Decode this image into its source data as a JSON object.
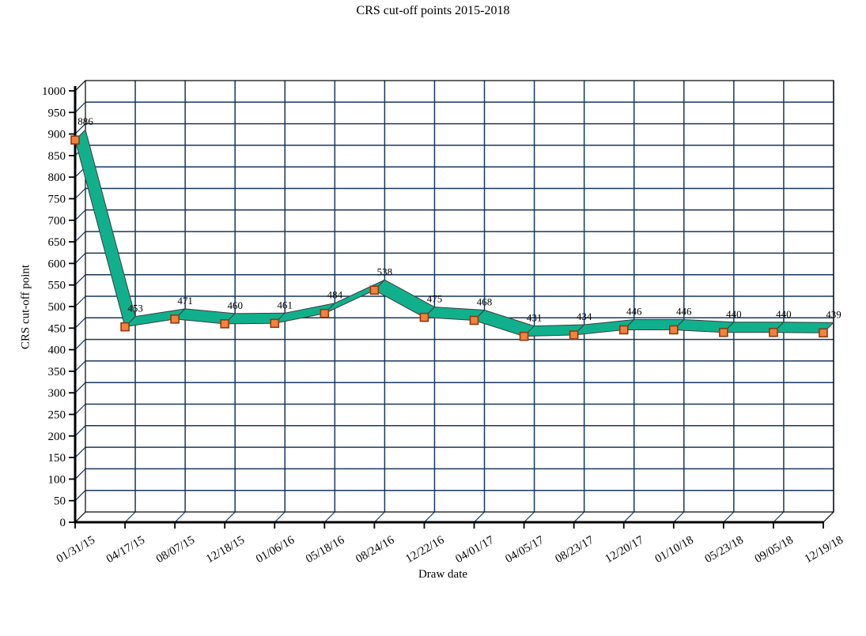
{
  "title": "CRS cut-off points 2015-2018",
  "chart_data": {
    "type": "line",
    "style_3d": true,
    "title": "CRS cut-off points 2015-2018",
    "xlabel": "Draw date",
    "ylabel": "CRS cut-off point",
    "categories": [
      "01/31/15",
      "04/17/15",
      "08/07/15",
      "12/18/15",
      "01/06/16",
      "05/18/16",
      "08/24/16",
      "12/22/16",
      "04/01/17",
      "04/05/17",
      "08/23/17",
      "12/20/17",
      "01/10/18",
      "05/23/18",
      "09/05/18",
      "12/19/18"
    ],
    "values": [
      886,
      453,
      471,
      460,
      461,
      484,
      538,
      475,
      468,
      431,
      434,
      446,
      446,
      440,
      440,
      439
    ],
    "ylim": [
      0,
      1000
    ],
    "yticks": [
      0,
      50,
      100,
      150,
      200,
      250,
      300,
      350,
      400,
      450,
      500,
      550,
      600,
      650,
      700,
      750,
      800,
      850,
      900,
      950,
      1000
    ],
    "grid": true,
    "legend": "none",
    "colors": {
      "ribbon": "#10B08D",
      "ribbon_edge": "#3d3d3d",
      "marker_fill": "#F5813D",
      "marker_edge": "#8B3A0F",
      "gridline": "#17375E",
      "axis": "#000000",
      "background": "#FFFFFF",
      "text": "#000000"
    }
  }
}
